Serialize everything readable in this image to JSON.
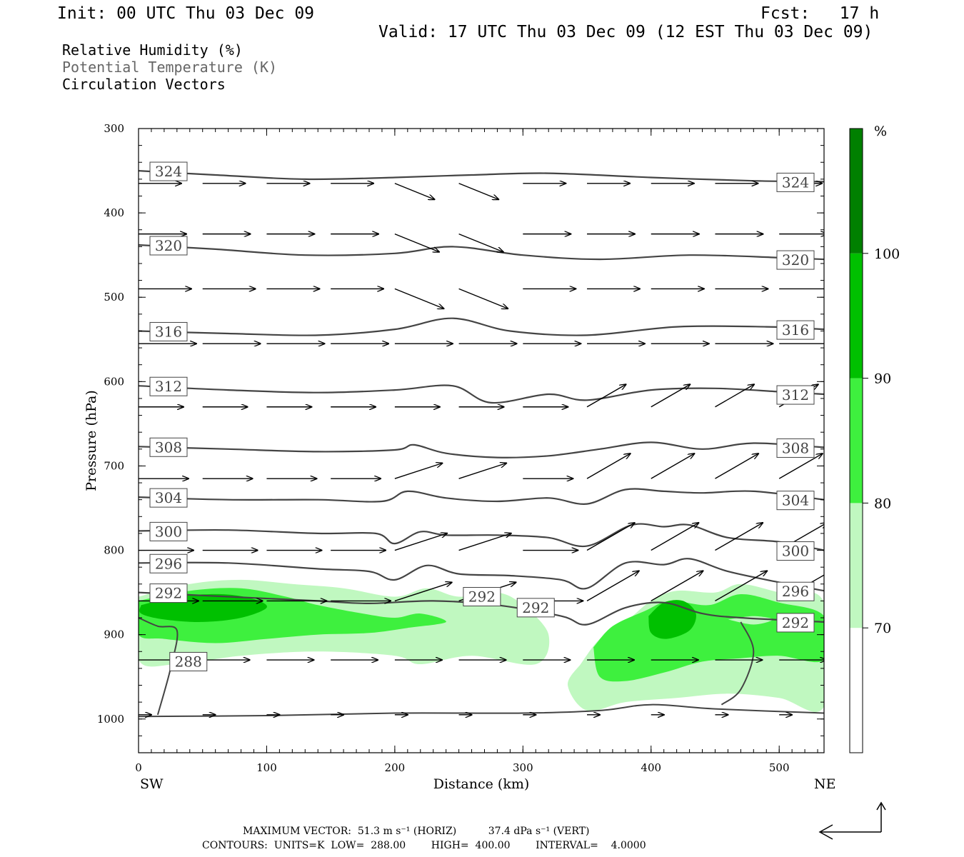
{
  "header": {
    "init": "Init: 00 UTC Thu 03 Dec 09",
    "fcst": "Fcst:   17 h",
    "valid": "Valid: 17 UTC Thu 03 Dec 09 (12 EST Thu 03 Dec 09)"
  },
  "legend": {
    "field1": "Relative Humidity (%)",
    "field2": "Potential Temperature (K)",
    "field3": "Circulation Vectors"
  },
  "footer": {
    "line1": "MAXIMUM VECTOR:  51.3 m s⁻¹ (HORIZ)          37.4 dPa s⁻¹ (VERT)",
    "line2": "CONTOURS:  UNITS=K  LOW=  288.00        HIGH=  400.00        INTERVAL=    4.0000"
  },
  "colors": {
    "rh70": "#c0f8c0",
    "rh80": "#3ef03e",
    "rh90": "#00c000",
    "rh100": "#008000",
    "theta": "#444444"
  },
  "chart_data": {
    "type": "cross-section",
    "xlabel": "Distance (km)",
    "ylabel": "Pressure (hPa)",
    "xlim": [
      0,
      535
    ],
    "ylim": [
      1040,
      300
    ],
    "x_ticks": [
      "0",
      "100",
      "200",
      "300",
      "400",
      "500"
    ],
    "x_tick_values": [
      0,
      100,
      200,
      300,
      400,
      500
    ],
    "y_ticks": [
      "300",
      "400",
      "500",
      "600",
      "700",
      "800",
      "900",
      "1000"
    ],
    "y_tick_values": [
      300,
      400,
      500,
      600,
      700,
      800,
      900,
      1000
    ],
    "left_end": "SW",
    "right_end": "NE",
    "colorbar": {
      "unit": "%",
      "levels": [
        "70",
        "80",
        "90",
        "100"
      ],
      "colors": [
        "#ffffff",
        "#c0f8c0",
        "#3ef03e",
        "#00c000",
        "#008000"
      ]
    },
    "theta_contours": [
      {
        "value": 324,
        "label": "324",
        "points": [
          [
            0,
            350
          ],
          [
            60,
            355
          ],
          [
            130,
            360
          ],
          [
            200,
            358
          ],
          [
            260,
            355
          ],
          [
            320,
            353
          ],
          [
            400,
            358
          ],
          [
            480,
            362
          ],
          [
            535,
            363
          ]
        ]
      },
      {
        "value": 320,
        "label": "320",
        "points": [
          [
            0,
            438
          ],
          [
            60,
            443
          ],
          [
            130,
            450
          ],
          [
            200,
            448
          ],
          [
            245,
            440
          ],
          [
            300,
            450
          ],
          [
            360,
            455
          ],
          [
            430,
            450
          ],
          [
            500,
            453
          ],
          [
            535,
            455
          ]
        ]
      },
      {
        "value": 316,
        "label": "316",
        "points": [
          [
            0,
            540
          ],
          [
            70,
            543
          ],
          [
            140,
            545
          ],
          [
            200,
            538
          ],
          [
            245,
            525
          ],
          [
            290,
            540
          ],
          [
            350,
            545
          ],
          [
            420,
            535
          ],
          [
            490,
            535
          ],
          [
            535,
            538
          ]
        ]
      },
      {
        "value": 312,
        "label": "312",
        "points": [
          [
            0,
            605
          ],
          [
            70,
            610
          ],
          [
            140,
            613
          ],
          [
            200,
            610
          ],
          [
            245,
            605
          ],
          [
            275,
            625
          ],
          [
            320,
            615
          ],
          [
            350,
            622
          ],
          [
            400,
            610
          ],
          [
            450,
            608
          ],
          [
            500,
            612
          ],
          [
            535,
            615
          ]
        ]
      },
      {
        "value": 308,
        "label": "308",
        "points": [
          [
            0,
            677
          ],
          [
            70,
            680
          ],
          [
            140,
            683
          ],
          [
            200,
            681
          ],
          [
            215,
            675
          ],
          [
            240,
            685
          ],
          [
            280,
            690
          ],
          [
            320,
            688
          ],
          [
            360,
            680
          ],
          [
            400,
            672
          ],
          [
            440,
            680
          ],
          [
            480,
            673
          ],
          [
            535,
            678
          ]
        ]
      },
      {
        "value": 304,
        "label": "304",
        "points": [
          [
            0,
            737
          ],
          [
            70,
            740
          ],
          [
            140,
            740
          ],
          [
            190,
            742
          ],
          [
            210,
            730
          ],
          [
            240,
            738
          ],
          [
            280,
            742
          ],
          [
            320,
            738
          ],
          [
            350,
            745
          ],
          [
            380,
            728
          ],
          [
            410,
            730
          ],
          [
            440,
            732
          ],
          [
            480,
            730
          ],
          [
            535,
            740
          ]
        ]
      },
      {
        "value": 300,
        "label": "300",
        "points": [
          [
            0,
            777
          ],
          [
            70,
            776
          ],
          [
            140,
            780
          ],
          [
            185,
            780
          ],
          [
            200,
            792
          ],
          [
            220,
            778
          ],
          [
            240,
            782
          ],
          [
            280,
            782
          ],
          [
            320,
            785
          ],
          [
            350,
            795
          ],
          [
            385,
            770
          ],
          [
            410,
            772
          ],
          [
            430,
            770
          ],
          [
            460,
            785
          ],
          [
            500,
            790
          ],
          [
            535,
            800
          ]
        ]
      },
      {
        "value": 296,
        "label": "296",
        "points": [
          [
            0,
            815
          ],
          [
            70,
            815
          ],
          [
            140,
            822
          ],
          [
            180,
            825
          ],
          [
            200,
            835
          ],
          [
            225,
            818
          ],
          [
            250,
            828
          ],
          [
            290,
            830
          ],
          [
            330,
            835
          ],
          [
            350,
            845
          ],
          [
            380,
            815
          ],
          [
            410,
            817
          ],
          [
            430,
            810
          ],
          [
            460,
            825
          ],
          [
            500,
            838
          ],
          [
            535,
            848
          ]
        ]
      },
      {
        "value": 292,
        "label": "292",
        "points": [
          [
            0,
            850
          ],
          [
            70,
            855
          ],
          [
            140,
            860
          ],
          [
            180,
            863
          ],
          [
            230,
            860
          ],
          [
            280,
            865
          ],
          [
            330,
            878
          ],
          [
            350,
            888
          ],
          [
            380,
            868
          ],
          [
            410,
            862
          ],
          [
            440,
            875
          ],
          [
            470,
            880
          ],
          [
            535,
            885
          ]
        ]
      }
    ],
    "vector_rows_hpa": [
      365,
      425,
      490,
      555,
      630,
      715,
      800,
      860,
      930,
      995
    ]
  }
}
